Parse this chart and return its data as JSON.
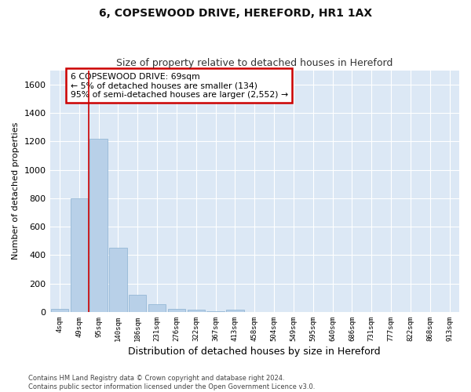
{
  "title": "6, COPSEWOOD DRIVE, HEREFORD, HR1 1AX",
  "subtitle": "Size of property relative to detached houses in Hereford",
  "xlabel": "Distribution of detached houses by size in Hereford",
  "ylabel": "Number of detached properties",
  "bar_color": "#b8d0e8",
  "bar_edge_color": "#8ab0d0",
  "background_color": "#dce8f5",
  "grid_color": "#ffffff",
  "vline_color": "#cc0000",
  "vline_x": 1.5,
  "annotation_text": "6 COPSEWOOD DRIVE: 69sqm\n← 5% of detached houses are smaller (134)\n95% of semi-detached houses are larger (2,552) →",
  "annotation_box_color": "#cc0000",
  "footer": "Contains HM Land Registry data © Crown copyright and database right 2024.\nContains public sector information licensed under the Open Government Licence v3.0.",
  "categories": [
    "4sqm",
    "49sqm",
    "95sqm",
    "140sqm",
    "186sqm",
    "231sqm",
    "276sqm",
    "322sqm",
    "367sqm",
    "413sqm",
    "458sqm",
    "504sqm",
    "549sqm",
    "595sqm",
    "640sqm",
    "686sqm",
    "731sqm",
    "777sqm",
    "822sqm",
    "868sqm",
    "913sqm"
  ],
  "values": [
    20,
    800,
    1220,
    450,
    120,
    55,
    20,
    15,
    5,
    15,
    0,
    0,
    0,
    0,
    0,
    0,
    0,
    0,
    0,
    0,
    0
  ],
  "ylim": [
    0,
    1700
  ],
  "yticks": [
    0,
    200,
    400,
    600,
    800,
    1000,
    1200,
    1400,
    1600
  ]
}
